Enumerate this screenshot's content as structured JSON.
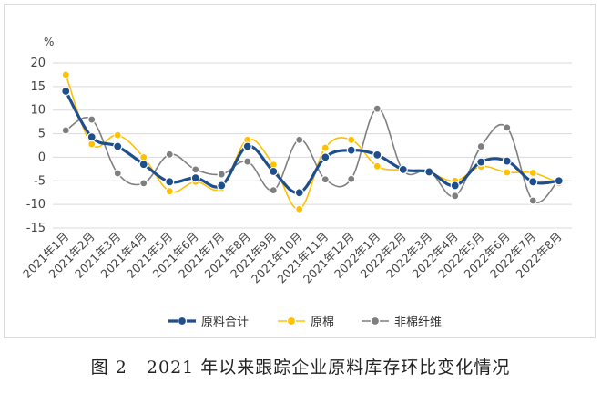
{
  "caption": "图 2   2021 年以来跟踪企业原料库存环比变化情况",
  "chart_data": {
    "type": "line",
    "unit": "%",
    "categories": [
      "2021年1月",
      "2021年2月",
      "2021年3月",
      "2021年4月",
      "2021年5月",
      "2021年6月",
      "2021年7月",
      "2021年8月",
      "2021年9月",
      "2021年10月",
      "2021年11月",
      "2021年12月",
      "2022年1月",
      "2022年2月",
      "2022年3月",
      "2022年4月",
      "2022年5月",
      "2022年6月",
      "2022年7月",
      "2022年8月"
    ],
    "ylim": [
      -15,
      20
    ],
    "yticks": [
      20,
      15,
      10,
      5,
      0,
      -5,
      -10,
      -15
    ],
    "grid": true,
    "legend_position": "bottom",
    "series": [
      {
        "name": "原料合计",
        "color": "#1f4e8c",
        "values": [
          14,
          4.3,
          2.3,
          -1.5,
          -5.2,
          -4.4,
          -6,
          2.3,
          -3,
          -7.5,
          0,
          1.5,
          0.5,
          -2.6,
          -3.1,
          -6,
          -1,
          -0.8,
          -5.2,
          -5
        ]
      },
      {
        "name": "原棉",
        "color": "#ffc000",
        "values": [
          17.5,
          2.8,
          4.7,
          0,
          -7.2,
          -5.2,
          -6.5,
          3.7,
          -1.6,
          -11,
          2,
          3.7,
          -1.9,
          -2.7,
          -3.3,
          -5,
          -2,
          -3.2,
          -3.3,
          -5.5
        ]
      },
      {
        "name": "非棉纤维",
        "color": "#7f7f7f",
        "values": [
          5.7,
          8,
          -3.4,
          -5.5,
          0.6,
          -2.6,
          -3.6,
          -0.9,
          -7,
          3.7,
          -4.7,
          -4.6,
          10.3,
          -2.8,
          -2.9,
          -8.2,
          2.3,
          6.3,
          -9.2,
          -4.7
        ]
      }
    ]
  }
}
